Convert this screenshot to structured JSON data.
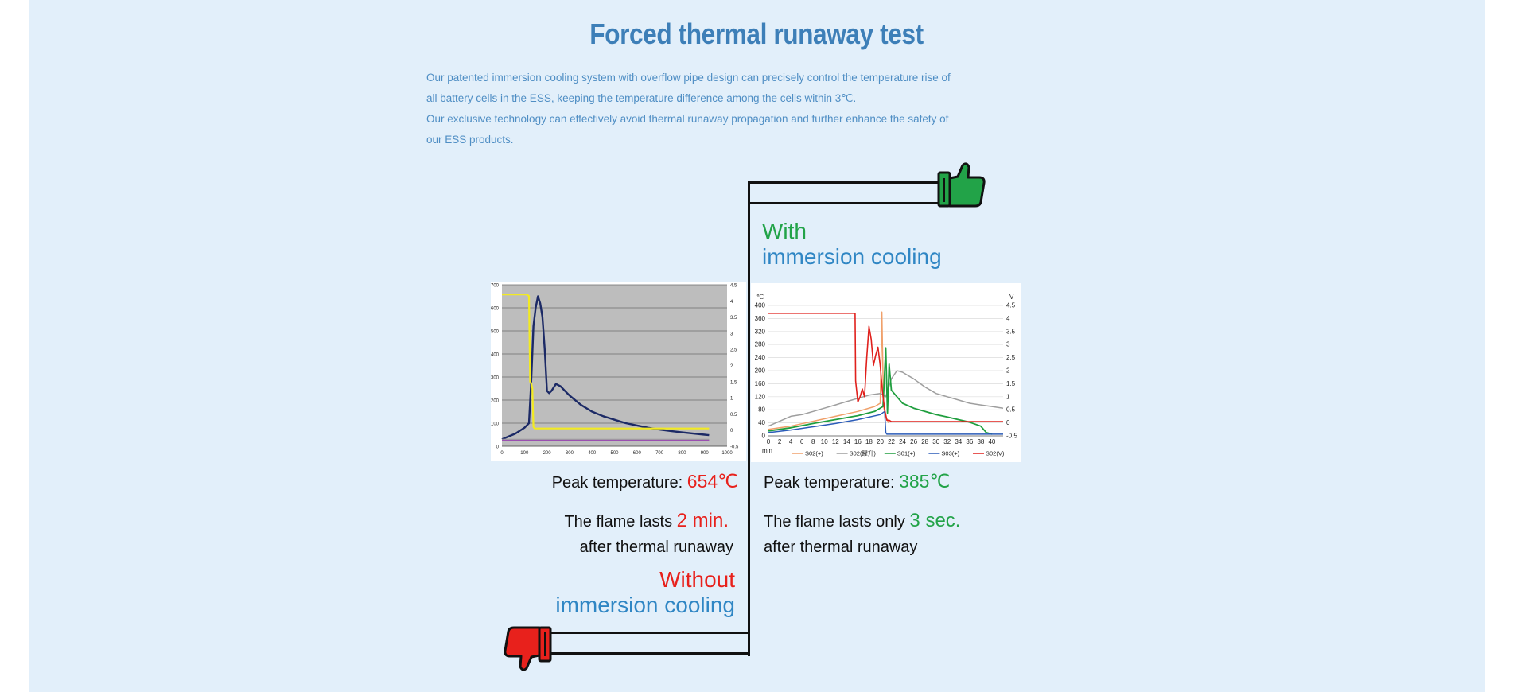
{
  "section": {
    "title": "Forced thermal runaway test",
    "paragraphs": [
      "Our patented immersion cooling system with overflow pipe design can precisely control the temperature rise of all battery cells in the ESS, keeping the temperature difference among the cells within 3℃.",
      "Our exclusive technology can effectively avoid thermal runaway propagation and further enhance the safety of our ESS products."
    ]
  },
  "with_cooling": {
    "heading_line1": "With",
    "heading_line2": "immersion cooling",
    "peak_label": "Peak temperature: ",
    "peak_value": "385℃",
    "flame_label": "The flame lasts only ",
    "flame_value": "3 sec.",
    "flame_suffix": "after thermal runaway",
    "icon": "thumbs-up-icon",
    "accent": "#22a348"
  },
  "without_cooling": {
    "heading_line1": "Without",
    "heading_line2": "immersion cooling",
    "peak_label": "Peak temperature: ",
    "peak_value": "654℃",
    "flame_label": "The flame lasts ",
    "flame_value": "2 min.",
    "flame_suffix": "after thermal runaway",
    "icon": "thumbs-down-icon",
    "accent": "#e8211c"
  },
  "chart_data": [
    {
      "type": "line",
      "x_ticks": [
        "0",
        "100",
        "200",
        "300",
        "400",
        "500",
        "600",
        "700",
        "800",
        "900",
        "1000"
      ],
      "y_ticks": [
        "0",
        "100",
        "200",
        "300",
        "400",
        "500",
        "600",
        "700"
      ],
      "y2_ticks": [
        "-0.5",
        "0",
        "0.5",
        "1",
        "1.5",
        "2",
        "2.5",
        "3",
        "3.5",
        "4",
        "4.5"
      ],
      "xlim": [
        0,
        1000
      ],
      "ylim": [
        0,
        700
      ],
      "y2lim": [
        -0.5,
        4.5
      ],
      "grid": true,
      "background": "#bdbdbd",
      "series": [
        {
          "color": "#1c2a66",
          "axis": "y",
          "x": [
            0,
            60,
            100,
            120,
            130,
            140,
            150,
            160,
            170,
            180,
            190,
            200,
            210,
            220,
            240,
            260,
            280,
            300,
            350,
            400,
            450,
            500,
            550,
            600,
            650,
            700,
            750,
            800,
            850,
            900,
            920
          ],
          "y": [
            30,
            55,
            80,
            100,
            280,
            520,
            600,
            650,
            620,
            560,
            420,
            240,
            230,
            240,
            270,
            260,
            240,
            220,
            180,
            150,
            130,
            115,
            100,
            90,
            80,
            72,
            66,
            60,
            55,
            50,
            48
          ]
        },
        {
          "color": "#f2ea22",
          "axis": "y2",
          "x": [
            0,
            100,
            110,
            120,
            125,
            130,
            135,
            140,
            145,
            150,
            200,
            300,
            400,
            500,
            600,
            700,
            800,
            900,
            920
          ],
          "y": [
            4.2,
            4.2,
            4.2,
            4.15,
            1.5,
            1.45,
            1.3,
            0.1,
            0.05,
            0.05,
            0.05,
            0.05,
            0.05,
            0.05,
            0.05,
            0.05,
            0.05,
            0.05,
            0.05
          ]
        },
        {
          "color": "#9a4fb0",
          "axis": "y",
          "x": [
            0,
            200,
            400,
            600,
            800,
            920
          ],
          "y": [
            25,
            25,
            25,
            25,
            25,
            25
          ]
        },
        {
          "color": "#9b9b9b",
          "axis": "y",
          "x": [
            0,
            200,
            400,
            600,
            800,
            920
          ],
          "y": [
            30,
            30,
            30,
            30,
            30,
            30
          ]
        }
      ]
    },
    {
      "type": "line",
      "y_unit": "℃",
      "y2_unit": "V",
      "x_unit": "min",
      "x_ticks": [
        "0",
        "2",
        "4",
        "6",
        "8",
        "10",
        "12",
        "14",
        "16",
        "18",
        "20",
        "22",
        "24",
        "26",
        "28",
        "30",
        "32",
        "34",
        "36",
        "38",
        "40"
      ],
      "y_ticks": [
        "0",
        "40",
        "80",
        "120",
        "160",
        "200",
        "240",
        "280",
        "320",
        "360",
        "400"
      ],
      "y2_ticks": [
        "-0.5",
        "0",
        "0.5",
        "1",
        "1.5",
        "2",
        "2.5",
        "3",
        "3.5",
        "4",
        "4.5"
      ],
      "xlim": [
        0,
        42
      ],
      "ylim": [
        0,
        400
      ],
      "y2lim": [
        -0.5,
        4.5
      ],
      "grid": true,
      "legend_position": "bottom",
      "series": [
        {
          "name": "S02(+)",
          "color": "#f0a06a",
          "axis": "y",
          "x": [
            0,
            4,
            8,
            12,
            16,
            19,
            20,
            20.3,
            20.6,
            21,
            21.5
          ],
          "y": [
            20,
            30,
            45,
            60,
            75,
            90,
            100,
            380,
            90,
            60,
            40
          ]
        },
        {
          "name": "S02(躍升)",
          "color": "#9e9e9e",
          "axis": "y",
          "x": [
            0,
            2,
            4,
            6,
            8,
            10,
            12,
            14,
            16,
            18,
            20,
            21,
            22,
            23,
            24,
            26,
            28,
            30,
            32,
            34,
            36,
            38,
            40,
            42
          ],
          "y": [
            30,
            45,
            60,
            65,
            75,
            85,
            95,
            105,
            115,
            125,
            130,
            120,
            175,
            200,
            195,
            175,
            150,
            130,
            120,
            110,
            100,
            95,
            90,
            85
          ]
        },
        {
          "name": "S01(+)",
          "color": "#1f9e3e",
          "axis": "y",
          "x": [
            0,
            4,
            8,
            12,
            16,
            19,
            20.5,
            21,
            21.3,
            21.6,
            22,
            23,
            24,
            26,
            28,
            30,
            32,
            34,
            36,
            38,
            39,
            40
          ],
          "y": [
            15,
            25,
            38,
            50,
            62,
            75,
            90,
            270,
            70,
            220,
            140,
            120,
            100,
            85,
            75,
            65,
            58,
            50,
            42,
            30,
            10,
            5
          ]
        },
        {
          "name": "S03(+)",
          "color": "#2a5bb8",
          "axis": "y",
          "x": [
            0,
            4,
            8,
            12,
            16,
            20,
            20.8,
            21,
            21.2,
            22,
            26,
            30,
            34,
            38,
            40,
            42
          ],
          "y": [
            10,
            18,
            28,
            38,
            50,
            65,
            75,
            10,
            5,
            5,
            5,
            5,
            5,
            5,
            5,
            5
          ]
        },
        {
          "name": "S02(V)",
          "color": "#e0201c",
          "axis": "y2",
          "x": [
            0,
            15.5,
            15.6,
            16,
            16.4,
            16.8,
            17.2,
            17.6,
            18,
            18.4,
            18.8,
            19.2,
            19.6,
            20,
            20.4,
            20.8,
            21.2,
            21.6,
            22,
            26,
            30,
            34,
            38,
            42
          ],
          "y": [
            4.2,
            4.2,
            1.6,
            0.8,
            1,
            1.3,
            1,
            2.5,
            3.7,
            3.2,
            2.2,
            2.6,
            2.9,
            2.2,
            1.2,
            0.5,
            0.1,
            0.1,
            0.05,
            0.05,
            0.05,
            0.05,
            0.05,
            0.05
          ]
        }
      ]
    }
  ]
}
